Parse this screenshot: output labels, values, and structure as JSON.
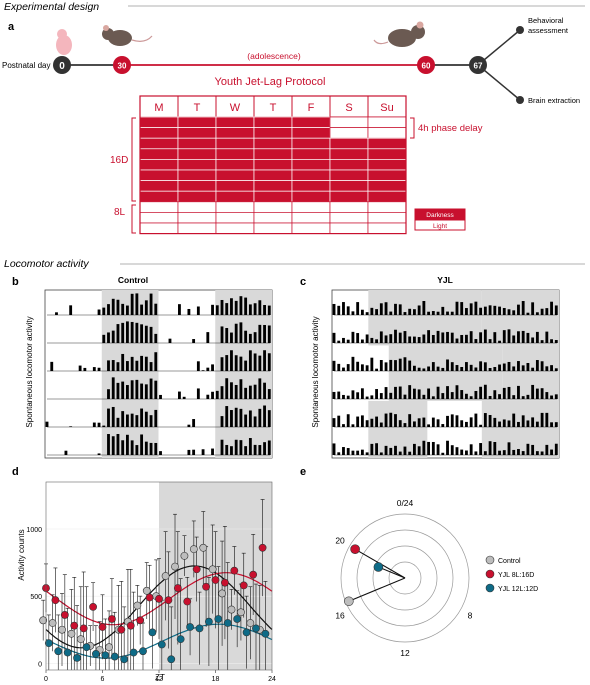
{
  "section_titles": {
    "design": "Experimental design",
    "locomotor": "Locomotor activity"
  },
  "panel_letters": {
    "a": "a",
    "b": "b",
    "c": "c",
    "d": "d",
    "e": "e"
  },
  "timeline": {
    "postnatal_label": "Postnatal day",
    "days": [
      "0",
      "30",
      "60",
      "67"
    ],
    "adolescence_label": "(adolescence)",
    "protocol_label": "Youth Jet-Lag Protocol",
    "branch_top": [
      "Behavioral",
      "assessment"
    ],
    "branch_bottom": "Brain extraction"
  },
  "schedule": {
    "days": [
      "M",
      "T",
      "W",
      "T",
      "F",
      "S",
      "Su"
    ],
    "phase_delay_label": "4h phase delay",
    "dark_label": "16D",
    "light_label": "8L",
    "legend_dark": "Darkness",
    "legend_light": "Light",
    "colors": {
      "dark": "#c8102e",
      "light": "#ffffff"
    }
  },
  "actogram_control": {
    "title": "Control",
    "ylabel": "Spontaneous locomotor activity"
  },
  "actogram_yjl": {
    "title": "YJL",
    "ylabel": "Spontaneous locomotor activity"
  },
  "chart_data": [
    {
      "type": "scatter",
      "title": "",
      "xlabel": "ZT",
      "ylabel": "Activity counts",
      "xlim": [
        0,
        24
      ],
      "ylim": [
        -50,
        1350
      ],
      "xticks": [
        "0",
        "6",
        "12",
        "18",
        "24"
      ],
      "yticks": [
        "0",
        "500",
        "1000"
      ],
      "dark_phase": [
        12,
        24
      ],
      "series": [
        {
          "legend": "Control",
          "color": "#bdbdbd",
          "x": [
            0,
            1,
            2,
            3,
            4,
            5,
            6,
            7,
            8,
            9,
            10,
            11,
            12,
            13,
            14,
            15,
            16,
            17,
            18,
            19,
            20,
            21,
            22,
            23
          ],
          "values": [
            320,
            300,
            250,
            220,
            180,
            130,
            100,
            120,
            250,
            310,
            430,
            540,
            500,
            650,
            720,
            800,
            850,
            860,
            700,
            520,
            400,
            380,
            300,
            250
          ]
        },
        {
          "legend": "YJL 8L:16D",
          "color": "#c8102e",
          "x": [
            0,
            1,
            2,
            3,
            4,
            5,
            6,
            7,
            8,
            9,
            10,
            11,
            12,
            13,
            14,
            15,
            16,
            17,
            18,
            19,
            20,
            21,
            22,
            23
          ],
          "values": [
            560,
            470,
            360,
            280,
            260,
            420,
            270,
            330,
            250,
            280,
            320,
            490,
            480,
            470,
            560,
            460,
            700,
            570,
            620,
            600,
            690,
            580,
            660,
            860
          ]
        },
        {
          "legend": "YJL 12L:12D",
          "color": "#0e6b87",
          "x": [
            0,
            1,
            2,
            3,
            4,
            5,
            6,
            7,
            8,
            9,
            10,
            11,
            12,
            13,
            14,
            15,
            16,
            17,
            18,
            19,
            20,
            21,
            22,
            23
          ],
          "values": [
            150,
            90,
            80,
            40,
            120,
            70,
            60,
            50,
            30,
            80,
            90,
            230,
            140,
            30,
            180,
            270,
            260,
            310,
            330,
            300,
            330,
            230,
            260,
            220
          ]
        }
      ]
    },
    {
      "type": "polar",
      "angular_ticks": [
        "0/24",
        "20",
        "16",
        "12",
        "8"
      ],
      "series": [
        {
          "legend": "Control",
          "color": "#bdbdbd",
          "angle_hours": 16.5,
          "radius": 0.95
        },
        {
          "legend": "YJL 8L:16D",
          "color": "#c8102e",
          "angle_hours": 20.0,
          "radius": 0.9
        },
        {
          "legend": "YJL 12L:12D",
          "color": "#0e6b87",
          "angle_hours": 19.5,
          "radius": 0.45
        }
      ]
    }
  ]
}
